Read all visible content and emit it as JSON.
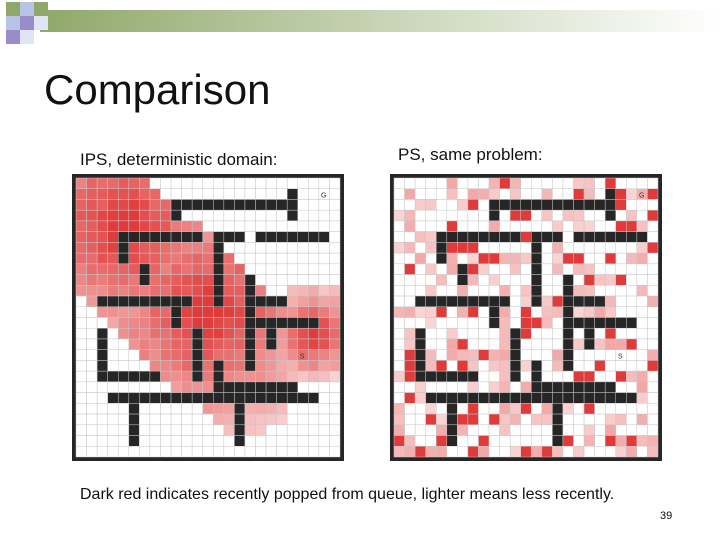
{
  "slide": {
    "title": "Comparison",
    "left_caption": "IPS,  deterministic domain:",
    "right_caption": "PS,  same problem:",
    "note": "Dark red indicates recently popped from queue, lighter means less recently.",
    "page_number": "39"
  },
  "mazes": {
    "left": {
      "goal_label": "G",
      "start_label": "S"
    },
    "right": {
      "goal_label": "G",
      "start_label": "S"
    }
  },
  "colors": {
    "wall": "#262626",
    "grid_line": "#c8c8c8",
    "heat_dark": "#e03a3a",
    "heat_light": "#fde4e4",
    "deco_green": "#8fa86a",
    "deco_purple": "#9a8cc8"
  }
}
